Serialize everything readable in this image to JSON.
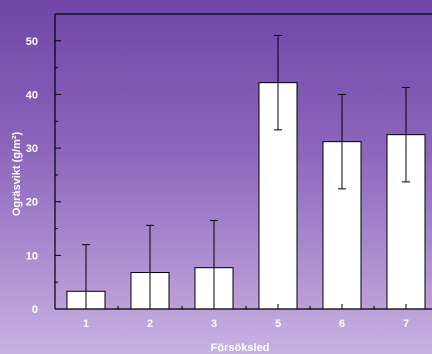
{
  "chart_data": {
    "type": "bar",
    "title": "",
    "xlabel": "Försöksled",
    "ylabel": "Ogräsvikt (g/m²)",
    "categories": [
      "1",
      "2",
      "3",
      "5",
      "6",
      "7"
    ],
    "values": [
      3.3,
      6.8,
      7.7,
      42.2,
      31.2,
      32.5
    ],
    "error": [
      8.7,
      8.8,
      8.8,
      8.8,
      8.8,
      8.8
    ],
    "ylim": [
      0,
      55
    ],
    "yticks": [
      0,
      10,
      20,
      30,
      40,
      50
    ],
    "grid": false,
    "legend": "none",
    "colors": {
      "bar_fill": "#ffffff",
      "bar_stroke": "#000000",
      "axis": "#000000",
      "text": "#ffffff"
    }
  }
}
